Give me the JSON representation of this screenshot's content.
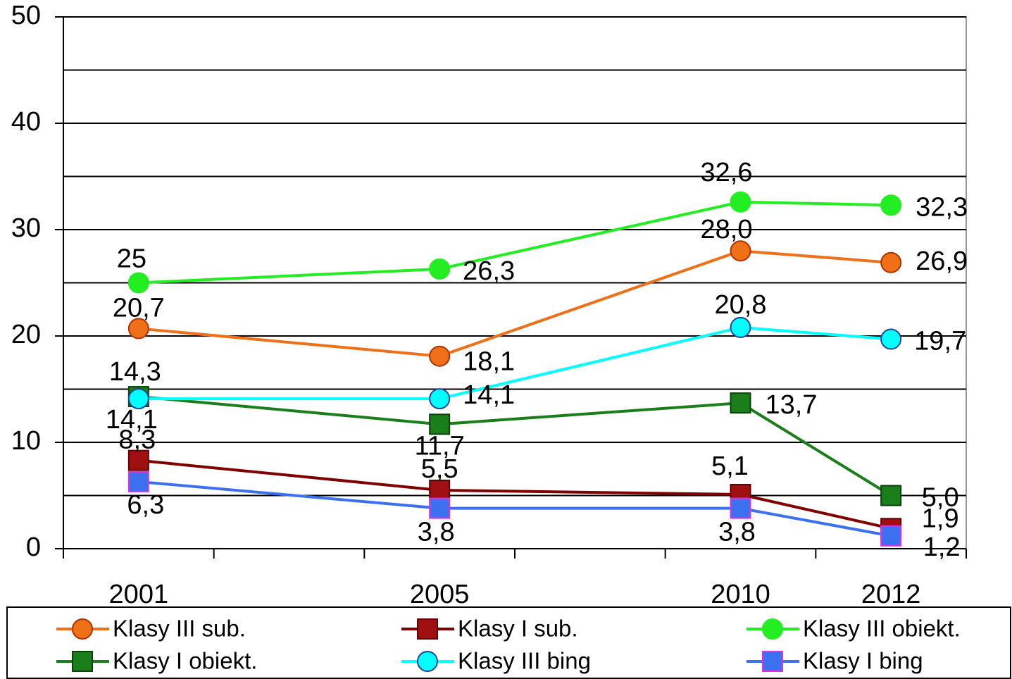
{
  "chart_data": {
    "type": "line",
    "categories": [
      "2001",
      null,
      "2005",
      null,
      "2010",
      "2012"
    ],
    "ylim": [
      0,
      50
    ],
    "yticks": [
      0,
      10,
      20,
      30,
      40,
      50
    ],
    "minor_gridlines": [
      5,
      15,
      25,
      35,
      45
    ],
    "grid": true,
    "series": [
      {
        "name": "Klasy III sub.",
        "color": "#f07018",
        "marker": "circle",
        "marker_fill": "#f07018",
        "marker_edge": "#b03000",
        "values": [
          20.7,
          null,
          18.1,
          null,
          28.0,
          26.9
        ],
        "value_labels": [
          "20,7",
          null,
          "18,1",
          null,
          "28,0",
          "26,9"
        ]
      },
      {
        "name": "Klasy I sub.",
        "color": "#800000",
        "marker": "square",
        "marker_fill": "#a01010",
        "marker_edge": "#600000",
        "values": [
          8.3,
          null,
          5.5,
          null,
          5.1,
          1.9
        ],
        "value_labels": [
          "8,3",
          null,
          "5,5",
          null,
          "5,1",
          "1,9"
        ]
      },
      {
        "name": "Klasy III obiekt.",
        "color": "#22ee22",
        "marker": "circle",
        "marker_fill": "#22ee22",
        "marker_edge": "#22ee22",
        "values": [
          25,
          null,
          26.3,
          null,
          32.6,
          32.3
        ],
        "value_labels": [
          "25",
          null,
          "26,3",
          null,
          "32,6",
          "32,3"
        ]
      },
      {
        "name": "Klasy I obiekt.",
        "color": "#1a7f1a",
        "marker": "square",
        "marker_fill": "#1a7f1a",
        "marker_edge": "#0a400a",
        "values": [
          14.3,
          null,
          11.7,
          null,
          13.7,
          5.0
        ],
        "value_labels": [
          "14,3",
          null,
          "11,7",
          null,
          "13,7",
          "5,0"
        ]
      },
      {
        "name": "Klasy III bing",
        "color": "#00ffff",
        "marker": "circle",
        "marker_fill": "#00ffff",
        "marker_edge": "#2040a0",
        "values": [
          14.1,
          null,
          14.1,
          null,
          20.8,
          19.7
        ],
        "value_labels": [
          "14,1",
          null,
          "14,1",
          null,
          "20,8",
          "19,7"
        ]
      },
      {
        "name": "Klasy I bing",
        "color": "#3b70ee",
        "marker": "square",
        "marker_fill": "#3b70ee",
        "marker_edge": "#e030e0",
        "values": [
          6.3,
          null,
          3.8,
          null,
          3.8,
          1.2
        ],
        "value_labels": [
          "6,3",
          null,
          "3,8",
          null,
          "3,8",
          "1,2"
        ]
      }
    ]
  }
}
